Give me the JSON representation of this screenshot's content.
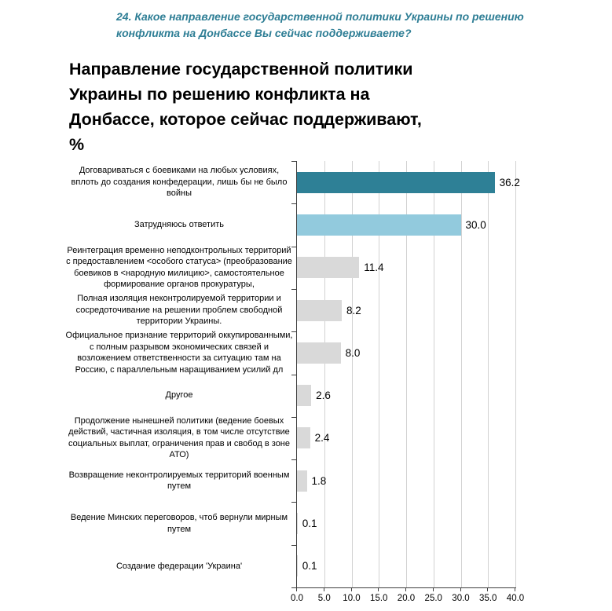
{
  "question_lines": [
    "24. Какое направление государственной политики Украины по решению",
    "конфликта на Донбассе Вы сейчас поддерживаете?"
  ],
  "title_lines": [
    "Направление государственной политики",
    "Украины по решению конфликта на",
    "Донбассе, которое сейчас поддерживают,",
    "%"
  ],
  "colors": {
    "question_text": "#2e7e95",
    "bar_primary": "#2e8096",
    "bar_secondary": "#92cadd",
    "bar_neutral": "#d9d9d9",
    "gridline": "#d2d2d2",
    "axis": "#3f3f3f"
  },
  "chart_data": {
    "type": "bar",
    "orientation": "horizontal",
    "title": "Направление государственной политики Украины по решению конфликта на Донбассе, которое сейчас поддерживают, %",
    "categories": [
      "Договариваться с боевиками на любых условиях, вплоть до создания конфедерации, лишь бы не было войны",
      "Затрудняюсь ответить",
      "Реинтеграция временно неподконтрольных территорий с предоставлением <особого статуса> (преобразование боевиков в <народную милицию>, самостоятельное формирование органов прокуратуры,",
      "Полная изоляция неконтролируемой территории и сосредоточивание на решении проблем свободной территории Украины.",
      "Официальное признание территорий оккупированными, с полным разрывом экономических связей и возложением ответственности за ситуацию там на Россию, с параллельным наращиванием усилий дл",
      "Другое",
      "Продолжение нынешней политики (ведение боевых действий, частичная изоляция, в том числе отсутствие социальных выплат, ограничения прав и свобод в зоне АТО)",
      "Возвращение неконтролируемых территорий военным путем",
      "Ведение Минских переговоров, чтоб вернули мирным путем",
      "Создание федерации 'Украина'"
    ],
    "values": [
      36.2,
      30.0,
      11.4,
      8.2,
      8.0,
      2.6,
      2.4,
      1.8,
      0.1,
      0.1
    ],
    "value_labels": [
      "36.2",
      "30.0",
      "11.4",
      "8.2",
      "8.0",
      "2.6",
      "2.4",
      "1.8",
      "0.1",
      "0.1"
    ],
    "bar_colors": [
      "#2e8096",
      "#92cadd",
      "#d9d9d9",
      "#d9d9d9",
      "#d9d9d9",
      "#d9d9d9",
      "#d9d9d9",
      "#d9d9d9",
      "#d9d9d9",
      "#d9d9d9"
    ],
    "xlabel": "",
    "ylabel": "",
    "xlim": [
      0,
      40
    ],
    "x_tick_step": 5,
    "x_tick_labels": [
      "0.0",
      "5.0",
      "10.0",
      "15.0",
      "20.0",
      "25.0",
      "30.0",
      "35.0",
      "40.0"
    ],
    "grid": true,
    "legend": false
  }
}
